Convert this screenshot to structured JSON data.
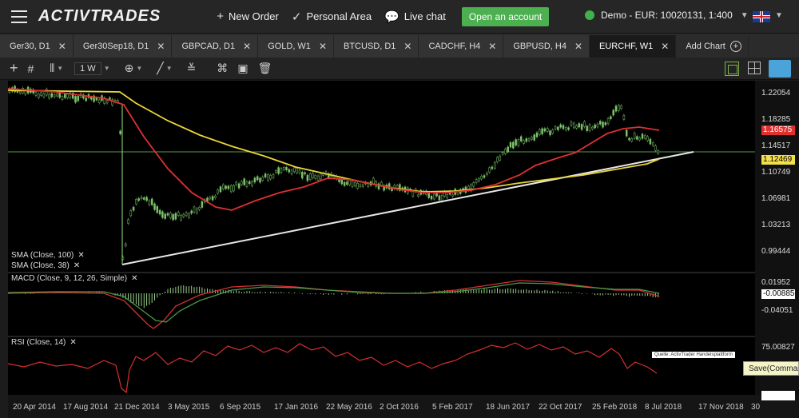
{
  "topbar": {
    "logo": "ACTIVTRADES",
    "new_order": "New Order",
    "personal_area": "Personal Area",
    "live_chat": "Live chat",
    "open_account": "Open an account",
    "account": "Demo - EUR: 10020131, 1:400"
  },
  "tabs": [
    {
      "label": "Ger30, D1"
    },
    {
      "label": "Ger30Sep18, D1"
    },
    {
      "label": "GBPCAD, D1"
    },
    {
      "label": "GOLD, W1"
    },
    {
      "label": "BTCUSD, D1"
    },
    {
      "label": "CADCHF, H4"
    },
    {
      "label": "GBPUSD, H4"
    },
    {
      "label": "EURCHF, W1",
      "active": true
    }
  ],
  "add_chart": "Add Chart",
  "toolbar": {
    "timeframe": "1 W"
  },
  "indicators": {
    "sma100": "SMA (Close, 100)",
    "sma38": "SMA (Close, 38)",
    "macd": "MACD (Close, 9, 12, 26, Simple)",
    "rsi": "RSI (Close, 14)"
  },
  "price_axis": [
    "1.22054",
    "1.18285",
    "1.14517",
    "1.10749",
    "1.06981",
    "1.03213",
    "0.99444"
  ],
  "price_tags": {
    "sma38": "1.16575",
    "current": "1.12469"
  },
  "macd_axis": [
    "0.01952",
    "-0.00885",
    "-0.04051"
  ],
  "rsi_axis": [
    "75.00827"
  ],
  "x_axis": [
    "20 Apr 2014",
    "17 Aug 2014",
    "21 Dec 2014",
    "3 May 2015",
    "6 Sep 2015",
    "17 Jan 2016",
    "22 May 2016",
    "2 Oct 2016",
    "5 Feb 2017",
    "18 Jun 2017",
    "22 Oct 2017",
    "25 Feb 2018",
    "8 Jul 2018",
    "17 Nov 2018",
    "30"
  ],
  "source": "Quelle: ActivTrader Handelsplattform",
  "tooltip": "Save(Commar",
  "colors": {
    "sma100": "#e8d63a",
    "sma38": "#e03030",
    "candles": "#7cc36a",
    "trend": "#e8e8e8",
    "accent": "#4caf50"
  }
}
